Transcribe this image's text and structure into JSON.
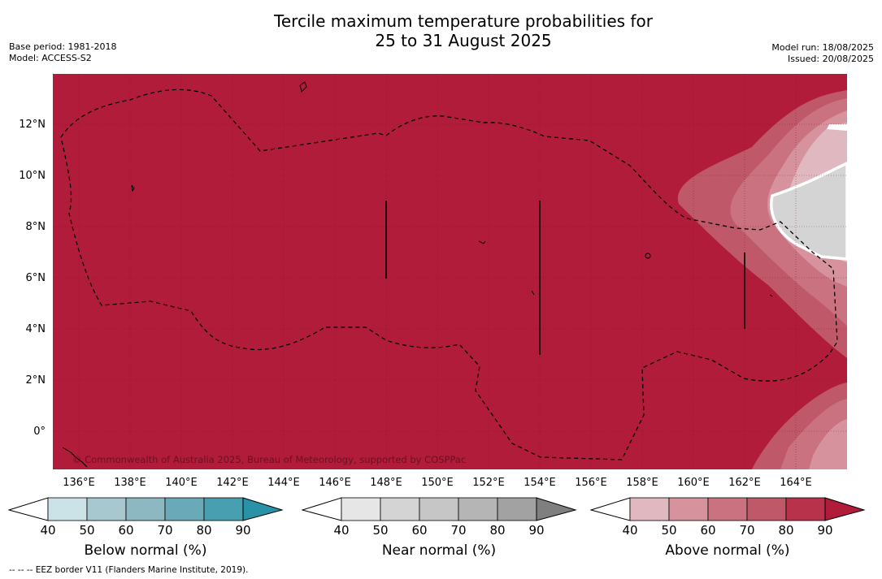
{
  "title": {
    "line1": "Tercile maximum temperature probabilities for",
    "line2": "25 to 31 August 2025"
  },
  "header_left": {
    "base_period": "Base period: 1981-2018",
    "model": "Model: ACCESS-S2"
  },
  "header_right": {
    "model_run": "Model run: 18/08/2025",
    "issued": "Issued: 20/08/2025"
  },
  "map": {
    "lat_ticks": [
      "12°N",
      "10°N",
      "8°N",
      "6°N",
      "4°N",
      "2°N",
      "0°"
    ],
    "lon_ticks": [
      "136°E",
      "138°E",
      "140°E",
      "142°E",
      "144°E",
      "146°E",
      "148°E",
      "150°E",
      "152°E",
      "154°E",
      "156°E",
      "158°E",
      "160°E",
      "162°E",
      "164°E"
    ],
    "copyright": "© Commonwealth of Australia 2025, Bureau of Meteorology, supported by COSPPac",
    "background_color": "#b01c3a",
    "border_style": "dashed"
  },
  "colorbars": [
    {
      "label": "Below normal (%)",
      "ticks": [
        "40",
        "50",
        "60",
        "70",
        "80",
        "90"
      ],
      "colors": [
        "#ffffff",
        "#cbe2e7",
        "#a8c8cf",
        "#8db7c1",
        "#6aa9b7",
        "#479fb0",
        "#2a92a6"
      ]
    },
    {
      "label": "Near normal (%)",
      "ticks": [
        "40",
        "50",
        "60",
        "70",
        "80",
        "90"
      ],
      "colors": [
        "#ffffff",
        "#e6e6e6",
        "#d4d4d4",
        "#c6c6c6",
        "#b5b5b5",
        "#a2a2a2",
        "#7f7f7f"
      ]
    },
    {
      "label": "Above normal (%)",
      "ticks": [
        "40",
        "50",
        "60",
        "70",
        "80",
        "90"
      ],
      "colors": [
        "#ffffff",
        "#e0b8bf",
        "#d6939d",
        "#ca7280",
        "#bf5868",
        "#b8324b",
        "#b01c3a"
      ]
    }
  ],
  "footer": "--  --  -- EEZ border V11 (Flanders Marine Institute, 2019)."
}
